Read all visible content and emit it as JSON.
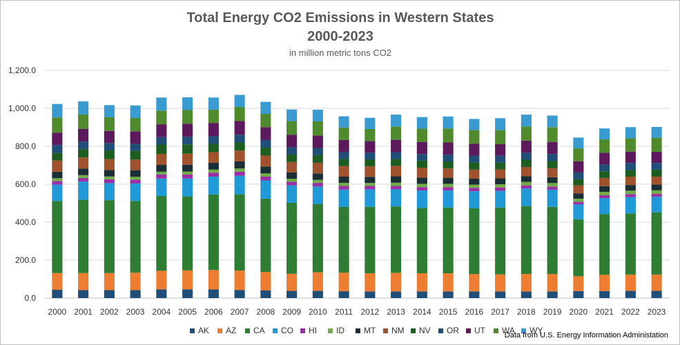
{
  "chart_data": {
    "type": "bar",
    "stacked": true,
    "title": "Total Energy CO2 Emissions in Western States",
    "title_line2": "2000-2023",
    "subtitle": "in million metric tons CO2",
    "source": "Data from U.S. Energy Information Administation",
    "ylim": [
      0,
      1200
    ],
    "yticks": [
      "0.0",
      "200.0",
      "400.0",
      "600.0",
      "800.0",
      "1,000.0",
      "1,200.0"
    ],
    "ytick_values": [
      0,
      200,
      400,
      600,
      800,
      1000,
      1200
    ],
    "grid": true,
    "legend_position": "bottom",
    "categories": [
      "2000",
      "2001",
      "2002",
      "2003",
      "2004",
      "2005",
      "2006",
      "2007",
      "2008",
      "2009",
      "2010",
      "2011",
      "2012",
      "2013",
      "2014",
      "2015",
      "2016",
      "2017",
      "2018",
      "2019",
      "2020",
      "2021",
      "2022",
      "2023"
    ],
    "series": [
      {
        "name": "AK",
        "color": "#1f4e79",
        "values": [
          44,
          42,
          42,
          42,
          46,
          46,
          46,
          43,
          40,
          38,
          38,
          36,
          35,
          35,
          35,
          35,
          35,
          35,
          35,
          35,
          37,
          37,
          38,
          38
        ]
      },
      {
        "name": "AZ",
        "color": "#ed7d31",
        "values": [
          88,
          90,
          90,
          92,
          98,
          100,
          102,
          102,
          98,
          90,
          98,
          98,
          96,
          98,
          96,
          96,
          92,
          90,
          92,
          92,
          78,
          86,
          86,
          86
        ]
      },
      {
        "name": "CA",
        "color": "#2e7d32",
        "values": [
          380,
          386,
          384,
          378,
          394,
          390,
          398,
          402,
          386,
          374,
          360,
          346,
          350,
          350,
          344,
          346,
          346,
          352,
          358,
          354,
          300,
          320,
          322,
          328
        ]
      },
      {
        "name": "CO",
        "color": "#1f9ad6",
        "values": [
          86,
          96,
          90,
          92,
          92,
          94,
          94,
          98,
          96,
          92,
          92,
          92,
          92,
          90,
          92,
          90,
          90,
          88,
          92,
          90,
          78,
          84,
          86,
          82
        ]
      },
      {
        "name": "HI",
        "color": "#9b2fa5",
        "values": [
          19,
          19,
          20,
          20,
          21,
          21,
          21,
          21,
          20,
          19,
          19,
          19,
          18,
          18,
          18,
          18,
          18,
          18,
          17,
          17,
          14,
          15,
          16,
          16
        ]
      },
      {
        "name": "ID",
        "color": "#70ad47",
        "values": [
          15,
          15,
          15,
          15,
          15,
          16,
          16,
          17,
          17,
          16,
          16,
          16,
          16,
          17,
          17,
          17,
          17,
          17,
          18,
          18,
          17,
          18,
          18,
          18
        ]
      },
      {
        "name": "MT",
        "color": "#1a2e35",
        "values": [
          34,
          34,
          34,
          35,
          36,
          36,
          36,
          37,
          36,
          33,
          34,
          33,
          32,
          34,
          33,
          32,
          31,
          31,
          31,
          31,
          28,
          30,
          30,
          30
        ]
      },
      {
        "name": "NM",
        "color": "#a0522d",
        "values": [
          59,
          59,
          57,
          56,
          58,
          58,
          56,
          57,
          58,
          55,
          56,
          56,
          55,
          54,
          52,
          49,
          48,
          47,
          48,
          47,
          42,
          43,
          44,
          42
        ]
      },
      {
        "name": "NV",
        "color": "#1b5e20",
        "values": [
          40,
          44,
          46,
          46,
          49,
          49,
          44,
          43,
          42,
          41,
          40,
          37,
          37,
          37,
          37,
          37,
          38,
          36,
          38,
          38,
          33,
          35,
          36,
          37
        ]
      },
      {
        "name": "OR",
        "color": "#1f4e79",
        "values": [
          41,
          40,
          39,
          37,
          39,
          40,
          40,
          41,
          40,
          37,
          38,
          36,
          35,
          36,
          35,
          36,
          36,
          36,
          37,
          37,
          35,
          36,
          36,
          35
        ]
      },
      {
        "name": "UT",
        "color": "#5c1a5c",
        "values": [
          66,
          67,
          64,
          66,
          68,
          69,
          70,
          72,
          68,
          66,
          66,
          64,
          61,
          65,
          64,
          64,
          63,
          61,
          64,
          64,
          59,
          62,
          60,
          59
        ]
      },
      {
        "name": "WA",
        "color": "#4f8b2d",
        "values": [
          80,
          76,
          72,
          70,
          72,
          72,
          70,
          74,
          70,
          72,
          74,
          66,
          64,
          70,
          70,
          74,
          72,
          74,
          74,
          78,
          68,
          70,
          70,
          74
        ]
      },
      {
        "name": "WY",
        "color": "#3a9bd0",
        "values": [
          71,
          69,
          64,
          66,
          69,
          67,
          64,
          64,
          63,
          61,
          62,
          59,
          59,
          63,
          61,
          63,
          58,
          63,
          63,
          61,
          57,
          58,
          59,
          57
        ]
      }
    ]
  }
}
